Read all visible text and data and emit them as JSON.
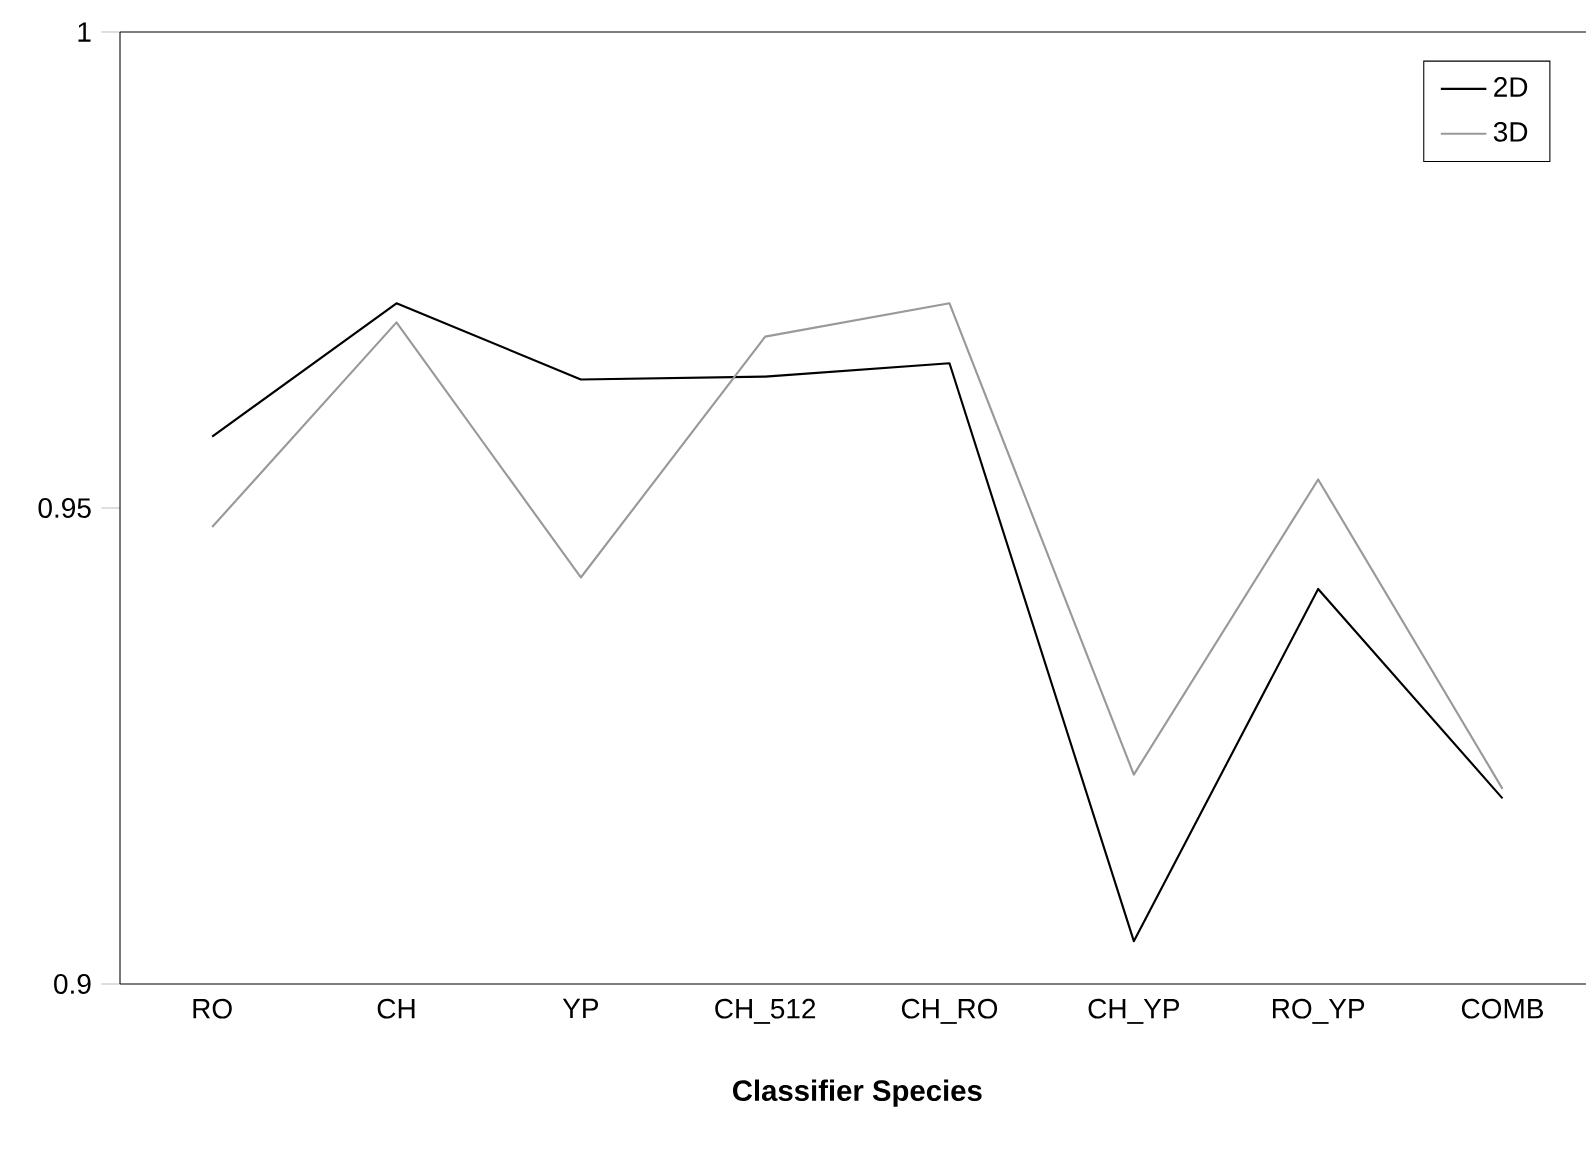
{
  "chart_data": {
    "type": "line",
    "xlabel": "Classifier Species",
    "categories": [
      "RO",
      "CH",
      "YP",
      "CH_512",
      "CH_RO",
      "CH_YP",
      "RO_YP",
      "COMB"
    ],
    "series": [
      {
        "name": "2D",
        "color": "#000000",
        "values": [
          0.9575,
          0.9715,
          0.9635,
          0.9638,
          0.9652,
          0.9045,
          0.9415,
          0.9195
        ]
      },
      {
        "name": "3D",
        "color": "#999999",
        "values": [
          0.948,
          0.9695,
          0.9427,
          0.968,
          0.9715,
          0.922,
          0.953,
          0.9205
        ]
      }
    ],
    "ylim": [
      0.9,
      1
    ],
    "yticks": [
      0.9,
      0.95,
      1
    ],
    "grid": false,
    "legend": "top right",
    "marker": "none",
    "line_style": "solid"
  }
}
